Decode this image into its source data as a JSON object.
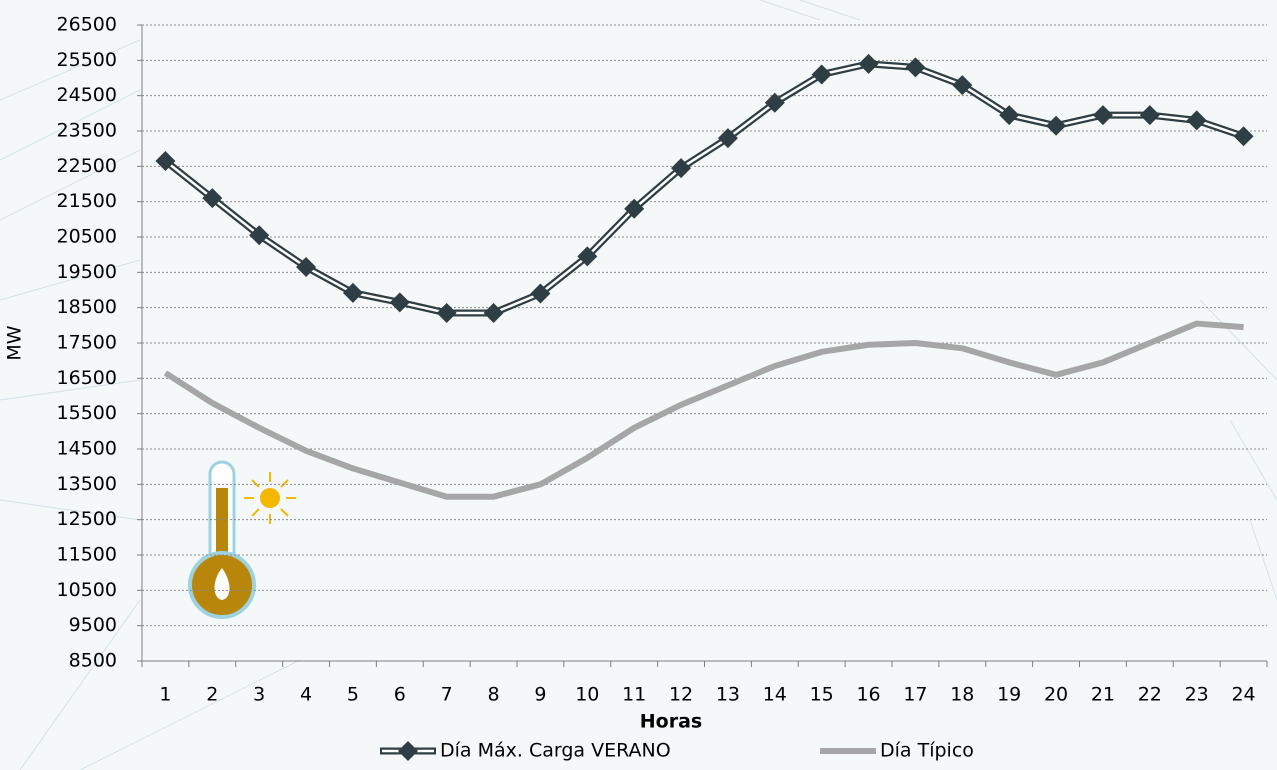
{
  "chart_data": {
    "type": "line",
    "xlabel": "Horas",
    "ylabel": "MW",
    "categories": [
      "1",
      "2",
      "3",
      "4",
      "5",
      "6",
      "7",
      "8",
      "9",
      "10",
      "11",
      "12",
      "13",
      "14",
      "15",
      "16",
      "17",
      "18",
      "19",
      "20",
      "21",
      "22",
      "23",
      "24"
    ],
    "series": [
      {
        "name": "Día Máx. Carga VERANO",
        "color": "#2f3e44",
        "marker": "diamond",
        "values": [
          22650,
          21600,
          20550,
          19650,
          18920,
          18650,
          18350,
          18350,
          18900,
          19950,
          21300,
          22450,
          23300,
          24300,
          25100,
          25400,
          25300,
          24800,
          23950,
          23650,
          23950,
          23950,
          23800,
          23350
        ]
      },
      {
        "name": "Día Típico",
        "color": "#a6a6a6",
        "values": [
          16650,
          15800,
          15100,
          14450,
          13950,
          13550,
          13150,
          13150,
          13500,
          14250,
          15100,
          15750,
          16300,
          16850,
          17250,
          17450,
          17500,
          17350,
          16950,
          16600,
          16950,
          17500,
          18050,
          17950
        ]
      }
    ],
    "ylim": [
      8500,
      26500
    ],
    "yticks": [
      8500,
      9500,
      10500,
      11500,
      12500,
      13500,
      14500,
      15500,
      16500,
      17500,
      18500,
      19500,
      20500,
      21500,
      22500,
      23500,
      24500,
      25500,
      26500
    ],
    "grid": true,
    "legend": "bottom"
  }
}
